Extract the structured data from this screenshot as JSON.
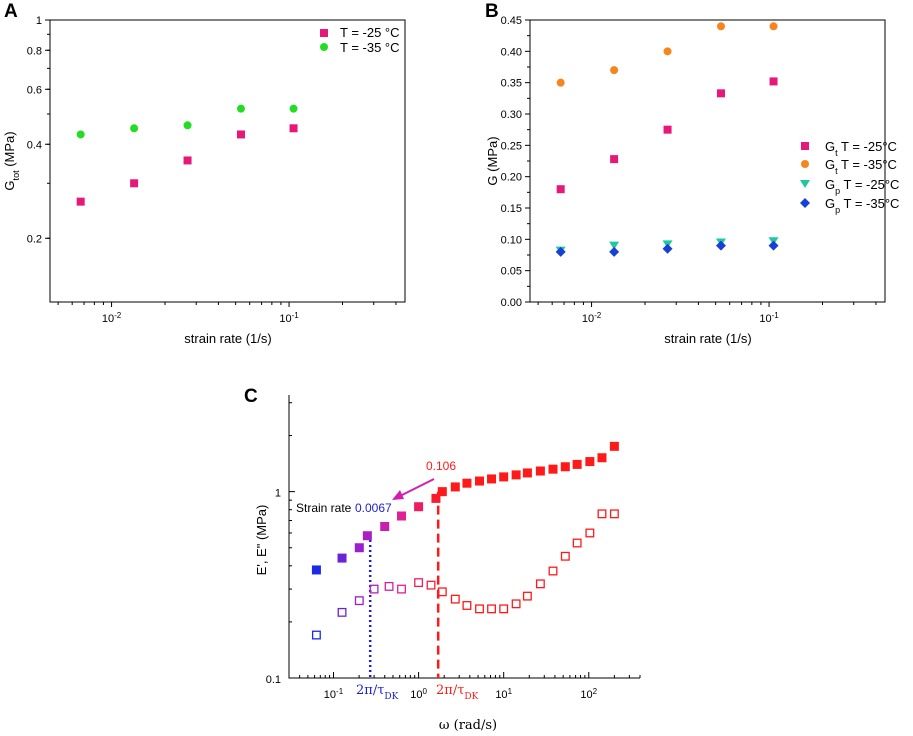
{
  "colors": {
    "pink": "#e6197a",
    "green": "#22dd22",
    "orange": "#f7841c",
    "teal": "#1ec9a0",
    "blue": "#1a3fd6",
    "red": "#ff1a1a",
    "navy": "#1f1fd0",
    "purple": "#9b1fd0",
    "magenta": "#d01fb0"
  },
  "chart_data": [
    {
      "panel": "A",
      "type": "scatter",
      "xscale": "log",
      "yscale": "log",
      "xlim": [
        0.0045,
        0.45
      ],
      "ylim": [
        0.125,
        1.0
      ],
      "xlabel": "strain rate (1/s)",
      "ylabel_main": "G",
      "ylabel_sub": "tot",
      "ylabel_unit": " (MPa)",
      "xticks": [
        {
          "base": "10",
          "exp": "-2",
          "v": 0.01
        },
        {
          "base": "10",
          "exp": "-1",
          "v": 0.1
        }
      ],
      "yticks": [
        {
          "label": "0.2",
          "v": 0.2
        },
        {
          "label": "0.4",
          "v": 0.4
        },
        {
          "label": "0.6",
          "v": 0.6
        },
        {
          "label": "0.8",
          "v": 0.8
        },
        {
          "label": "1",
          "v": 1.0
        }
      ],
      "legend": [
        "T = -25 °C",
        "T = -35 °C"
      ],
      "series": [
        {
          "name": "T = -25 °C",
          "marker": "square",
          "color": "pink",
          "x": [
            0.0067,
            0.0134,
            0.0268,
            0.0536,
            0.106
          ],
          "y": [
            0.262,
            0.3,
            0.355,
            0.43,
            0.45
          ]
        },
        {
          "name": "T = -35 °C",
          "marker": "circle",
          "color": "green",
          "x": [
            0.0067,
            0.0134,
            0.0268,
            0.0536,
            0.106
          ],
          "y": [
            0.43,
            0.45,
            0.46,
            0.52,
            0.52
          ]
        }
      ]
    },
    {
      "panel": "B",
      "type": "scatter",
      "xscale": "log",
      "yscale": "linear",
      "xlim": [
        0.0045,
        0.45
      ],
      "ylim": [
        0.0,
        0.45
      ],
      "xlabel": "strain rate (1/s)",
      "ylabel": "G (MPa)",
      "xticks": [
        {
          "base": "10",
          "exp": "-2",
          "v": 0.01
        },
        {
          "base": "10",
          "exp": "-1",
          "v": 0.1
        }
      ],
      "yticks": [
        "0.00",
        "0.05",
        "0.10",
        "0.15",
        "0.20",
        "0.25",
        "0.30",
        "0.35",
        "0.40",
        "0.45"
      ],
      "legend": [
        {
          "main": "G",
          "sub": "t",
          "rest": " T = -25°C"
        },
        {
          "main": "G",
          "sub": "t",
          "rest": " T = -35°C"
        },
        {
          "main": "G",
          "sub": "p",
          "rest": " T = -25°C"
        },
        {
          "main": "G",
          "sub": "p",
          "rest": " T = -35°C"
        }
      ],
      "series": [
        {
          "name": "Gt T = -25°C",
          "marker": "square",
          "color": "pink",
          "x": [
            0.0067,
            0.0134,
            0.0268,
            0.0536,
            0.106
          ],
          "y": [
            0.18,
            0.228,
            0.275,
            0.333,
            0.352
          ]
        },
        {
          "name": "Gt T = -35°C",
          "marker": "circle",
          "color": "orange",
          "x": [
            0.0067,
            0.0134,
            0.0268,
            0.0536,
            0.106
          ],
          "y": [
            0.35,
            0.37,
            0.4,
            0.44,
            0.44
          ]
        },
        {
          "name": "Gp T = -25°C",
          "marker": "triangle-down",
          "color": "teal",
          "x": [
            0.0067,
            0.0134,
            0.0268,
            0.0536,
            0.106
          ],
          "y": [
            0.082,
            0.09,
            0.092,
            0.095,
            0.097
          ]
        },
        {
          "name": "Gp T = -35°C",
          "marker": "diamond",
          "color": "blue",
          "x": [
            0.0067,
            0.0134,
            0.0268,
            0.0536,
            0.106
          ],
          "y": [
            0.08,
            0.08,
            0.085,
            0.09,
            0.09
          ]
        }
      ]
    },
    {
      "panel": "C",
      "type": "scatter",
      "xscale": "log",
      "yscale": "log",
      "xlim": [
        0.03,
        400
      ],
      "ylim": [
        0.1,
        3.3
      ],
      "xlabel": "ω (rad/s)",
      "ylabel": "E', E\" (MPa)",
      "xticks": [
        {
          "base": "10",
          "exp": "-1",
          "v": 0.1
        },
        {
          "base": "10",
          "exp": "0",
          "v": 1
        },
        {
          "base": "10",
          "exp": "1",
          "v": 10
        },
        {
          "base": "10",
          "exp": "2",
          "v": 100
        }
      ],
      "yticks": [
        {
          "label": "0.1",
          "v": 0.1
        },
        {
          "label": "1",
          "v": 1.0
        }
      ],
      "series": [
        {
          "name": "E'",
          "marker": "square-filled",
          "x": [
            0.063,
            0.126,
            0.201,
            0.25,
            0.4,
            0.63,
            1.0,
            1.6,
            1.9,
            2.7,
            3.7,
            5.2,
            7.2,
            10,
            14,
            19,
            27,
            38,
            53,
            73,
            103,
            143,
            200
          ],
          "y": [
            0.38,
            0.44,
            0.5,
            0.58,
            0.65,
            0.74,
            0.83,
            0.92,
            1.0,
            1.06,
            1.11,
            1.14,
            1.17,
            1.2,
            1.23,
            1.26,
            1.29,
            1.32,
            1.36,
            1.4,
            1.45,
            1.52,
            1.75
          ]
        },
        {
          "name": "E\"",
          "marker": "square-open",
          "x": [
            0.063,
            0.126,
            0.201,
            0.3,
            0.45,
            0.63,
            1.0,
            1.4,
            1.9,
            2.7,
            3.7,
            5.2,
            7.2,
            10,
            14,
            19,
            27,
            38,
            53,
            73,
            103,
            143,
            200
          ],
          "y": [
            0.17,
            0.225,
            0.26,
            0.3,
            0.31,
            0.3,
            0.325,
            0.315,
            0.29,
            0.265,
            0.245,
            0.235,
            0.235,
            0.235,
            0.25,
            0.275,
            0.32,
            0.375,
            0.45,
            0.53,
            0.6,
            0.76,
            0.76
          ]
        }
      ],
      "vlines": [
        {
          "x": 0.27,
          "style": "dotted",
          "color": "navy",
          "label_main": "2π/τ",
          "label_sub": "DK"
        },
        {
          "x": 1.7,
          "style": "dashed",
          "color": "red",
          "label_main": "2π/τ",
          "label_sub": "DK"
        }
      ],
      "annotations": {
        "strain_rate_label": "Strain rate",
        "low_rate": "0.0067",
        "high_rate": "0.106"
      }
    }
  ]
}
